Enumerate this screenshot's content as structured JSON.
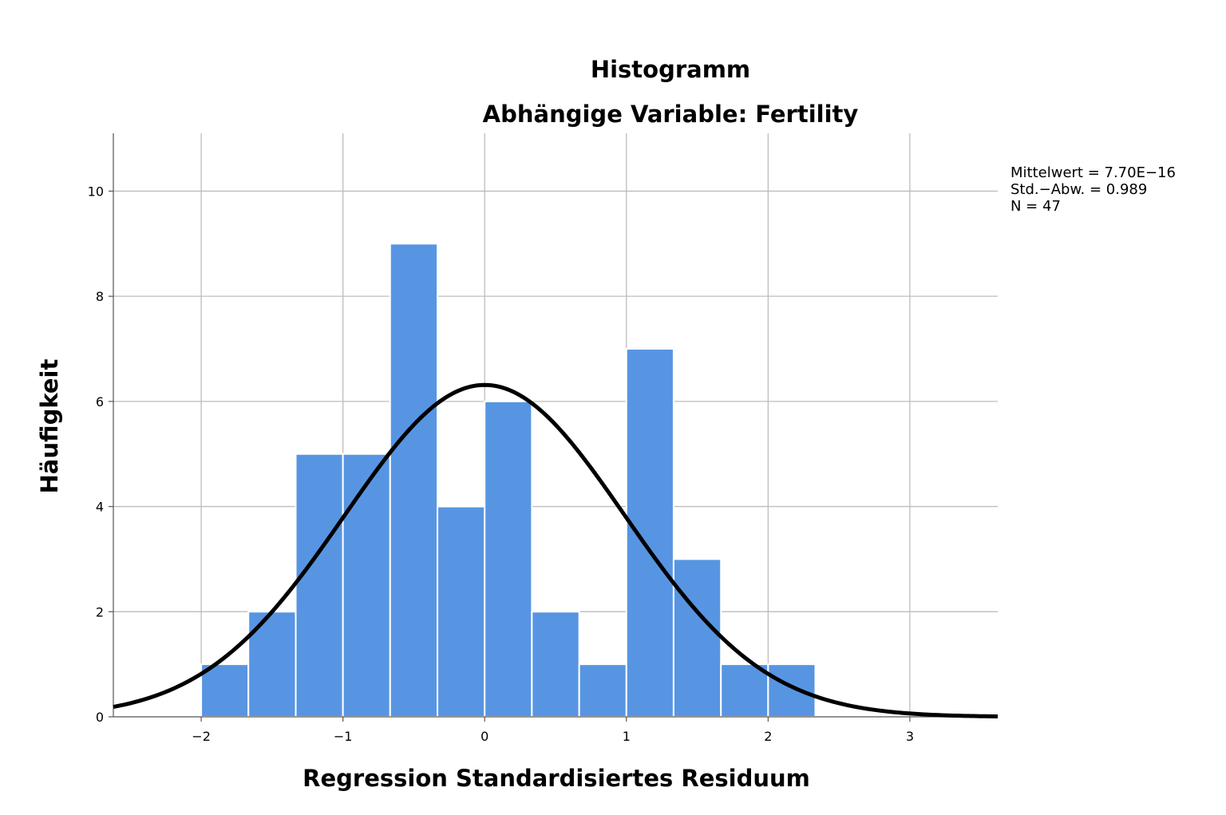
{
  "chart_data": {
    "type": "bar",
    "subtype": "histogram",
    "title": "Histogramm",
    "subtitle": "Abhängige Variable: Fertility",
    "xlabel": "Regression Standardisiertes Residuum",
    "ylabel": "Häufigkeit",
    "xlim": [
      -2.62,
      3.62
    ],
    "ylim": [
      0,
      11.1
    ],
    "x_ticks": [
      {
        "value": -2,
        "label": "−2"
      },
      {
        "value": -1,
        "label": "−1"
      },
      {
        "value": 0,
        "label": "0"
      },
      {
        "value": 1,
        "label": "1"
      },
      {
        "value": 2,
        "label": "2"
      },
      {
        "value": 3,
        "label": "3"
      }
    ],
    "y_ticks": [
      {
        "value": 0,
        "label": "0"
      },
      {
        "value": 2,
        "label": "2"
      },
      {
        "value": 4,
        "label": "4"
      },
      {
        "value": 6,
        "label": "6"
      },
      {
        "value": 8,
        "label": "8"
      },
      {
        "value": 10,
        "label": "10"
      }
    ],
    "bins": [
      {
        "start": -2.0,
        "end": -1.667,
        "count": 1
      },
      {
        "start": -1.667,
        "end": -1.333,
        "count": 2
      },
      {
        "start": -1.333,
        "end": -1.0,
        "count": 5
      },
      {
        "start": -1.0,
        "end": -0.667,
        "count": 5
      },
      {
        "start": -0.667,
        "end": -0.333,
        "count": 9
      },
      {
        "start": -0.333,
        "end": 0.0,
        "count": 4
      },
      {
        "start": 0.0,
        "end": 0.333,
        "count": 6
      },
      {
        "start": 0.333,
        "end": 0.667,
        "count": 2
      },
      {
        "start": 0.667,
        "end": 1.0,
        "count": 1
      },
      {
        "start": 1.0,
        "end": 1.333,
        "count": 7
      },
      {
        "start": 1.333,
        "end": 1.667,
        "count": 3
      },
      {
        "start": 1.667,
        "end": 2.0,
        "count": 1
      },
      {
        "start": 2.0,
        "end": 2.333,
        "count": 1
      }
    ],
    "normal_curve": {
      "mean": 0,
      "sd": 0.989,
      "n": 47,
      "bin_width": 0.333
    },
    "grid": true,
    "stats": [
      "Mittelwert = 7.70E−16",
      "Std.−Abw. = 0.989",
      "N = 47"
    ],
    "stats_placement": "right",
    "colors": {
      "bar_fill": "#5795e3",
      "bar_edge": "#ffffff",
      "grid": "#bdbdbd",
      "curve": "#000000",
      "axis": "#555555"
    }
  }
}
